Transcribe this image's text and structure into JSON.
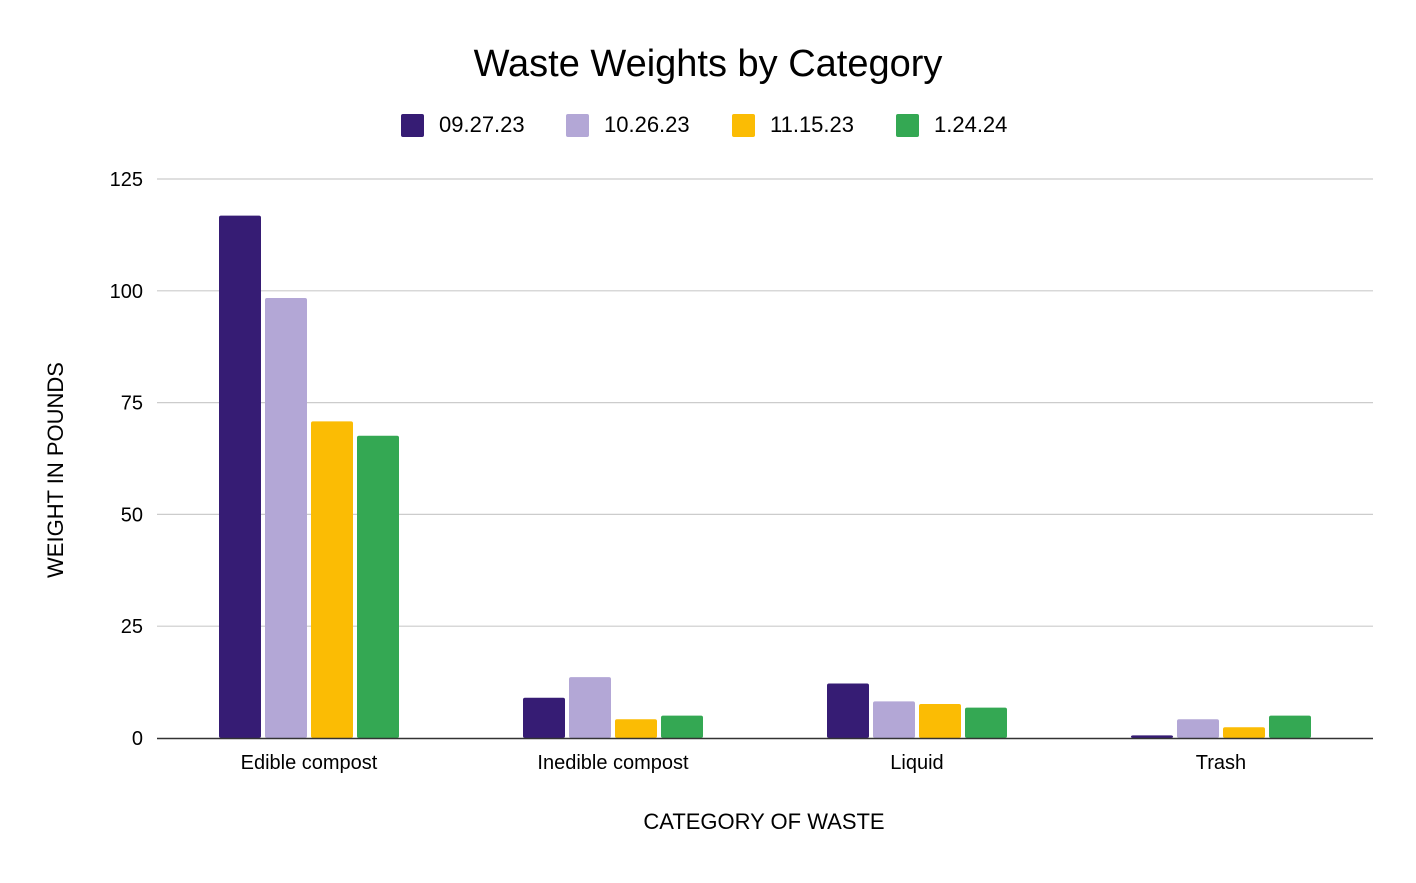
{
  "chart_data": {
    "type": "bar",
    "title": "Waste Weights by Category",
    "xlabel": "CATEGORY OF WASTE",
    "ylabel": "WEIGHT IN POUNDS",
    "categories": [
      "Edible compost",
      "Inedible compost",
      "Liquid",
      "Trash"
    ],
    "ylim": [
      0,
      125
    ],
    "yticks": [
      0,
      25,
      50,
      75,
      100,
      125
    ],
    "grid": true,
    "legend_position": "top",
    "series": [
      {
        "name": "09.27.23",
        "color": "#361c74",
        "values": [
          116.8,
          9.0,
          12.2,
          0.6
        ]
      },
      {
        "name": "10.26.23",
        "color": "#b3a7d6",
        "values": [
          98.4,
          13.6,
          8.2,
          4.2
        ]
      },
      {
        "name": "11.15.23",
        "color": "#fbbc04",
        "values": [
          70.8,
          4.2,
          7.6,
          2.4
        ]
      },
      {
        "name": "1.24.24",
        "color": "#34a853",
        "values": [
          67.6,
          5.0,
          6.8,
          5.0
        ]
      }
    ]
  }
}
